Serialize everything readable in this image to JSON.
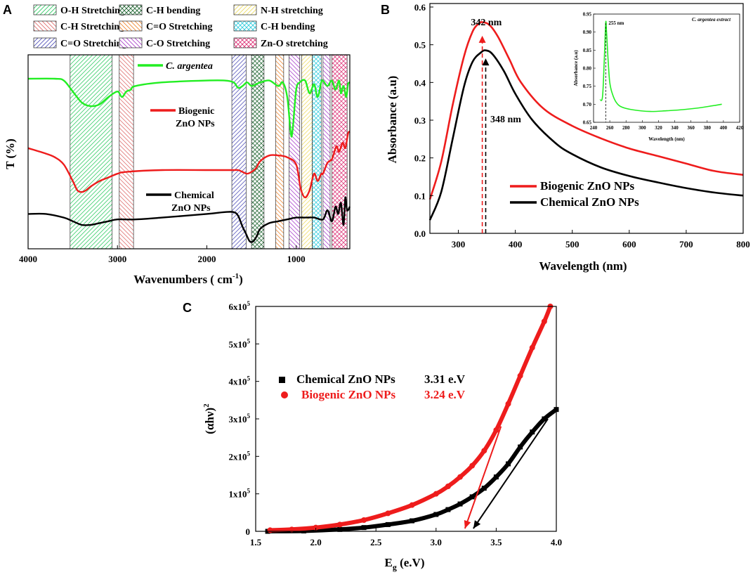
{
  "colors": {
    "green": "#22ee22",
    "red": "#ee1c1c",
    "black": "#000000",
    "band_oh": "#33cc66",
    "band_ch": "#e07070",
    "band_co": "#5555bb",
    "band_chb": "#226633",
    "band_co2": "#ee8833",
    "band_nh": "#eedd66",
    "band_chb2": "#33ccdd",
    "band_co3": "#aa44cc",
    "band_zno": "#dd3377"
  },
  "panels": {
    "a": "A",
    "b": "B",
    "c": "C"
  },
  "chart_data": [
    {
      "id": "A",
      "type": "line",
      "title": "",
      "xlabel": "Wavenumbers ( cm",
      "xlabel_sup": "-1",
      "xlabel_end": ")",
      "ylabel": "T (%)",
      "xlim": [
        4000,
        400
      ],
      "xticks": [
        "4000",
        "3000",
        "2000",
        "1000"
      ],
      "band_legend": [
        {
          "label": "O-H Stretching",
          "key": "oh"
        },
        {
          "label": "C-H Stretching",
          "key": "ch"
        },
        {
          "label": "C=O Stretching",
          "key": "co"
        },
        {
          "label": "C-H bending",
          "key": "chb"
        },
        {
          "label": "C=O Stretching",
          "key": "co2"
        },
        {
          "label": "C-O Stretching",
          "key": "co3"
        },
        {
          "label": "N-H stretching",
          "key": "nh"
        },
        {
          "label": "C-H bending",
          "key": "chb2"
        },
        {
          "label": "Zn-O stretching",
          "key": "zno"
        }
      ],
      "bands": [
        {
          "key": "oh",
          "from": 3530,
          "to": 3060
        },
        {
          "key": "ch",
          "from": 2980,
          "to": 2820
        },
        {
          "key": "co",
          "from": 1720,
          "to": 1560
        },
        {
          "key": "chb",
          "from": 1500,
          "to": 1360
        },
        {
          "key": "co2",
          "from": 1230,
          "to": 1140
        },
        {
          "key": "co3",
          "from": 1080,
          "to": 960
        },
        {
          "key": "nh",
          "from": 940,
          "to": 820
        },
        {
          "key": "chb2",
          "from": 820,
          "to": 720
        },
        {
          "key": "co3",
          "from": 700,
          "to": 620
        },
        {
          "key": "zno",
          "from": 600,
          "to": 430
        }
      ],
      "series": [
        {
          "name": "C. argentea",
          "color_key": "green",
          "label_lines": [
            "C. argentea"
          ],
          "x": [
            4000,
            3700,
            3600,
            3500,
            3400,
            3300,
            3200,
            3100,
            3000,
            2950,
            2900,
            2850,
            2800,
            2500,
            2000,
            1800,
            1700,
            1650,
            1600,
            1550,
            1500,
            1450,
            1400,
            1300,
            1200,
            1150,
            1100,
            1060,
            1040,
            1000,
            960,
            900,
            850,
            800,
            760,
            720,
            700,
            650,
            600,
            560,
            520,
            500,
            470,
            440,
            420,
            400
          ],
          "y": [
            90,
            90,
            89,
            83,
            77,
            75,
            76,
            80,
            83,
            80,
            83,
            84,
            86,
            88,
            89,
            89,
            88,
            85,
            86,
            88,
            86,
            87,
            88,
            89,
            86,
            88,
            80,
            60,
            62,
            84,
            88,
            89,
            82,
            87,
            80,
            88,
            89,
            86,
            89,
            84,
            89,
            82,
            86,
            80,
            87,
            88
          ]
        },
        {
          "name": "Biogenic ZnO NPs",
          "color_key": "red",
          "label_lines": [
            "Biogenic",
            "ZnO NPs"
          ],
          "x": [
            4000,
            3800,
            3700,
            3600,
            3500,
            3450,
            3400,
            3350,
            3300,
            3200,
            3100,
            3000,
            2900,
            2500,
            2000,
            1800,
            1700,
            1650,
            1600,
            1550,
            1500,
            1450,
            1400,
            1300,
            1200,
            1100,
            1000,
            950,
            900,
            850,
            800,
            760,
            720,
            700,
            650,
            600,
            550,
            520,
            480,
            450,
            420,
            400
          ],
          "y": [
            52,
            49,
            47,
            43,
            34,
            29,
            28,
            29,
            31,
            34,
            36,
            38,
            39,
            40,
            40,
            40,
            40,
            40,
            39,
            38,
            39,
            41,
            45,
            48,
            48,
            47,
            43,
            30,
            25,
            29,
            38,
            34,
            38,
            38,
            44,
            46,
            53,
            50,
            55,
            52,
            60,
            61
          ]
        },
        {
          "name": "Chemical ZnO NPs",
          "color_key": "black",
          "label_lines": [
            "Chemical",
            "ZnO NPs"
          ],
          "x": [
            4000,
            3800,
            3600,
            3500,
            3400,
            3300,
            3200,
            3100,
            3000,
            2800,
            2500,
            2000,
            1800,
            1700,
            1650,
            1600,
            1560,
            1520,
            1480,
            1440,
            1400,
            1300,
            1200,
            1100,
            1000,
            900,
            800,
            700,
            650,
            600,
            560,
            530,
            500,
            470,
            450,
            430,
            400
          ],
          "y": [
            16,
            16,
            14,
            12,
            10,
            10,
            11,
            12,
            13,
            13,
            14,
            16,
            17,
            17,
            15,
            9,
            5,
            1,
            1,
            4,
            8,
            11,
            12,
            13,
            14,
            14,
            14,
            13,
            18,
            12,
            20,
            16,
            22,
            10,
            25,
            18,
            20
          ]
        }
      ]
    },
    {
      "id": "B",
      "type": "line",
      "title": "",
      "xlabel": "Wavelength (nm)",
      "ylabel": "Absorbance (a.u)",
      "xlim": [
        250,
        800
      ],
      "ylim": [
        0.0,
        0.6
      ],
      "xticks": [
        "300",
        "400",
        "500",
        "600",
        "700",
        "800"
      ],
      "yticks": [
        "0.0",
        "0.1",
        "0.2",
        "0.3",
        "0.4",
        "0.5",
        "0.6"
      ],
      "series": [
        {
          "name": "Biogenic ZnO NPs",
          "color_key": "red",
          "peak": 342,
          "peak_label": "342 nm",
          "x": [
            250,
            270,
            290,
            310,
            325,
            335,
            342,
            355,
            370,
            390,
            410,
            450,
            500,
            550,
            600,
            650,
            700,
            750,
            800
          ],
          "y": [
            0.09,
            0.19,
            0.34,
            0.47,
            0.535,
            0.555,
            0.56,
            0.552,
            0.52,
            0.46,
            0.4,
            0.33,
            0.285,
            0.252,
            0.225,
            0.205,
            0.185,
            0.165,
            0.155
          ]
        },
        {
          "name": "Chemical ZnO NPs",
          "color_key": "black",
          "peak": 348,
          "peak_label": "348 nm",
          "x": [
            250,
            270,
            290,
            310,
            325,
            340,
            348,
            360,
            380,
            400,
            430,
            470,
            500,
            550,
            600,
            650,
            700,
            750,
            800
          ],
          "y": [
            0.035,
            0.11,
            0.25,
            0.39,
            0.455,
            0.48,
            0.485,
            0.475,
            0.43,
            0.37,
            0.3,
            0.24,
            0.21,
            0.175,
            0.152,
            0.135,
            0.12,
            0.108,
            0.1
          ]
        }
      ],
      "inset": {
        "title": "C. argentea extract",
        "xlabel": "Wavelength (nm)",
        "ylabel": "Absorbance (a.u)",
        "xlim": [
          240,
          420
        ],
        "ylim": [
          0.65,
          0.95
        ],
        "xticks": [
          "240",
          "260",
          "280",
          "300",
          "320",
          "340",
          "360",
          "380",
          "400",
          "420"
        ],
        "yticks": [
          "0.65",
          "0.70",
          "0.75",
          "0.80",
          "0.85",
          "0.90",
          "0.95"
        ],
        "peak": 255,
        "peak_label": "255 nm",
        "x": [
          248,
          251,
          253,
          255,
          256,
          258,
          260,
          263,
          268,
          275,
          290,
          310,
          330,
          350,
          370,
          390,
          398
        ],
        "y": [
          0.712,
          0.72,
          0.81,
          0.925,
          0.9,
          0.82,
          0.76,
          0.73,
          0.705,
          0.692,
          0.684,
          0.68,
          0.682,
          0.685,
          0.69,
          0.697,
          0.7
        ]
      }
    },
    {
      "id": "C",
      "type": "scatter",
      "title": "",
      "xlabel": "E",
      "xlabel_sub": "g",
      "xlabel_end": " (e.V)",
      "ylabel": "(αhν)",
      "ylabel_sup": "2",
      "xlim": [
        1.5,
        4.0
      ],
      "ylim": [
        0,
        600000
      ],
      "xticks": [
        "1.5",
        "2.0",
        "2.5",
        "3.0",
        "3.5",
        "4.0"
      ],
      "yticks": [
        {
          "v": 0,
          "base": "0",
          "exp": ""
        },
        {
          "v": 100000,
          "base": "1x10",
          "exp": "5"
        },
        {
          "v": 200000,
          "base": "2x10",
          "exp": "5"
        },
        {
          "v": 300000,
          "base": "3x10",
          "exp": "5"
        },
        {
          "v": 400000,
          "base": "4x10",
          "exp": "5"
        },
        {
          "v": 500000,
          "base": "5x10",
          "exp": "5"
        },
        {
          "v": 600000,
          "base": "6x10",
          "exp": "5"
        }
      ],
      "series": [
        {
          "name": "Chemical ZnO NPs",
          "color_key": "black",
          "marker": "square",
          "band_gap": 3.31,
          "band_gap_label": "3.31 e.V",
          "x": [
            1.6,
            1.9,
            2.2,
            2.4,
            2.6,
            2.8,
            3.0,
            3.1,
            3.2,
            3.3,
            3.4,
            3.5,
            3.6,
            3.7,
            3.8,
            3.9,
            4.0
          ],
          "y": [
            0,
            1000,
            5000,
            10000,
            18000,
            28000,
            45000,
            58000,
            73000,
            92000,
            115000,
            145000,
            180000,
            225000,
            265000,
            300000,
            325000
          ]
        },
        {
          "name": "Biogenic ZnO NPs",
          "color_key": "red",
          "marker": "circle",
          "band_gap": 3.24,
          "band_gap_label": "3.24 e.V",
          "x": [
            1.62,
            1.8,
            2.0,
            2.2,
            2.4,
            2.6,
            2.8,
            3.0,
            3.1,
            3.2,
            3.3,
            3.4,
            3.5,
            3.6,
            3.7,
            3.8,
            3.9,
            3.95
          ],
          "y": [
            3000,
            5000,
            10000,
            18000,
            30000,
            48000,
            70000,
            100000,
            120000,
            145000,
            175000,
            215000,
            270000,
            340000,
            415000,
            490000,
            560000,
            600000
          ]
        }
      ]
    }
  ]
}
